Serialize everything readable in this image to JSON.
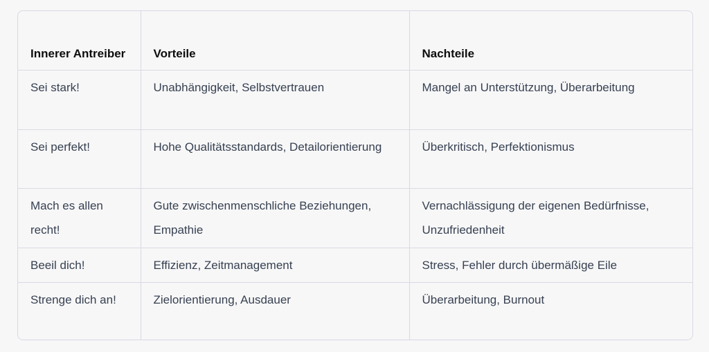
{
  "table": {
    "headers": [
      "Innerer Antreiber",
      "Vorteile",
      "Nachteile"
    ],
    "rows": [
      [
        "Sei stark!",
        "Unabhängigkeit, Selbstvertrauen",
        "Mangel an Unterstützung, Überarbeitung"
      ],
      [
        "Sei perfekt!",
        "Hohe Qualitätsstandards, Detailorientierung",
        "Überkritisch, Perfektionismus"
      ],
      [
        "Mach es allen recht!",
        "Gute zwischenmenschliche Beziehungen, Empathie",
        "Vernachlässigung der eigenen Bedürfnisse, Unzufriedenheit"
      ],
      [
        "Beeil dich!",
        "Effizienz, Zeitmanagement",
        "Stress, Fehler durch übermäßige Eile"
      ],
      [
        "Strenge dich an!",
        "Zielorientierung, Ausdauer",
        "Überarbeitung, Burnout"
      ]
    ]
  }
}
